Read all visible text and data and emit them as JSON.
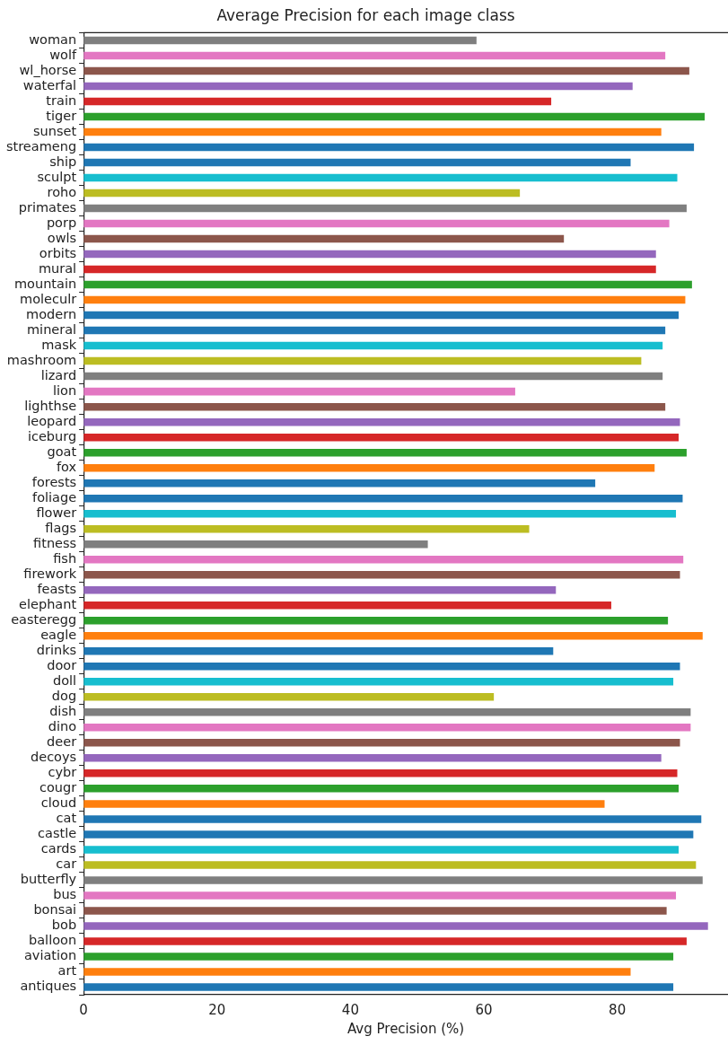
{
  "chart_data": {
    "type": "bar",
    "orientation": "horizontal",
    "title": "Average Precision for each image class",
    "xlabel": "Avg Precision (%)",
    "categories": [
      "woman",
      "wolf",
      "wl_horse",
      "waterfal",
      "train",
      "tiger",
      "sunset",
      "streameng",
      "ship",
      "sculpt",
      "roho",
      "primates",
      "porp",
      "owls",
      "orbits",
      "mural",
      "mountain",
      "moleculr",
      "modern",
      "mineral",
      "mask",
      "mashroom",
      "lizard",
      "lion",
      "lighthse",
      "leopard",
      "iceburg",
      "goat",
      "fox",
      "forests",
      "foliage",
      "flower",
      "flags",
      "fitness",
      "fish",
      "firework",
      "feasts",
      "elephant",
      "easteregg",
      "eagle",
      "drinks",
      "door",
      "doll",
      "dog",
      "dish",
      "dino",
      "deer",
      "decoys",
      "cybr",
      "cougr",
      "cloud",
      "cat",
      "castle",
      "cards",
      "car",
      "butterfly",
      "bus",
      "bonsai",
      "bob",
      "balloon",
      "aviation",
      "art",
      "antiques"
    ],
    "values": [
      58.9,
      87.2,
      90.8,
      82.3,
      70.1,
      93.1,
      86.6,
      91.5,
      82.0,
      89.0,
      65.4,
      90.4,
      87.8,
      72.0,
      85.8,
      85.8,
      91.2,
      90.2,
      89.2,
      87.2,
      86.8,
      83.6,
      86.8,
      64.7,
      87.2,
      89.4,
      89.2,
      90.4,
      85.6,
      76.7,
      89.8,
      88.8,
      66.8,
      51.6,
      89.9,
      89.4,
      70.8,
      79.1,
      87.6,
      92.8,
      70.4,
      89.4,
      88.4,
      61.5,
      91.0,
      91.0,
      89.4,
      86.6,
      89.0,
      89.2,
      78.1,
      92.6,
      91.4,
      89.2,
      91.8,
      92.8,
      88.8,
      87.4,
      93.6,
      90.4,
      88.4,
      82.0,
      88.4
    ],
    "colors": [
      "#7f7f7f",
      "#e377c2",
      "#8c564b",
      "#9467bd",
      "#d62728",
      "#2ca02c",
      "#ff7f0e",
      "#1f77b4",
      "#1f77b4",
      "#17becf",
      "#bcbd22",
      "#7f7f7f",
      "#e377c2",
      "#8c564b",
      "#9467bd",
      "#d62728",
      "#2ca02c",
      "#ff7f0e",
      "#1f77b4",
      "#1f77b4",
      "#17becf",
      "#bcbd22",
      "#7f7f7f",
      "#e377c2",
      "#8c564b",
      "#9467bd",
      "#d62728",
      "#2ca02c",
      "#ff7f0e",
      "#1f77b4",
      "#1f77b4",
      "#17becf",
      "#bcbd22",
      "#7f7f7f",
      "#e377c2",
      "#8c564b",
      "#9467bd",
      "#d62728",
      "#2ca02c",
      "#ff7f0e",
      "#1f77b4",
      "#1f77b4",
      "#17becf",
      "#bcbd22",
      "#7f7f7f",
      "#e377c2",
      "#8c564b",
      "#9467bd",
      "#d62728",
      "#2ca02c",
      "#ff7f0e",
      "#1f77b4",
      "#1f77b4",
      "#17becf",
      "#bcbd22",
      "#7f7f7f",
      "#e377c2",
      "#8c564b",
      "#9467bd",
      "#d62728",
      "#2ca02c",
      "#ff7f0e",
      "#1f77b4"
    ],
    "xlim": [
      0,
      96.6
    ],
    "xticks": [
      0,
      20,
      40,
      60,
      80
    ],
    "grid": false,
    "legend": false
  }
}
